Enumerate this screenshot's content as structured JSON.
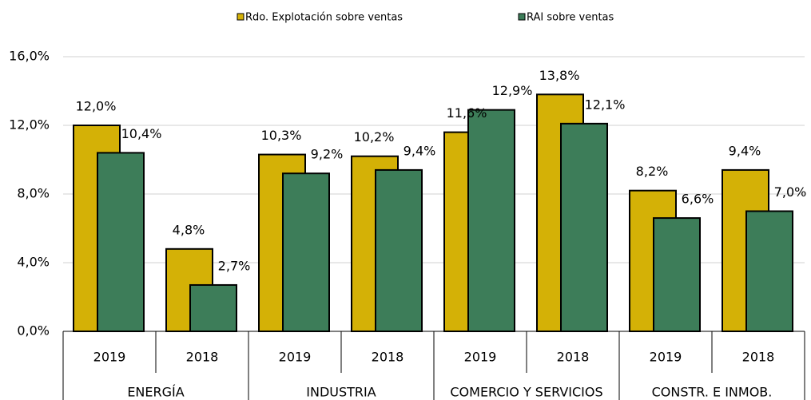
{
  "chart_data": {
    "type": "bar",
    "categories": [
      "2019",
      "2018",
      "2019",
      "2018",
      "2019",
      "2018",
      "2019",
      "2018"
    ],
    "groups": [
      "ENERGÍA",
      "INDUSTRIA",
      "COMERCIO Y SERVICIOS",
      "CONSTR. E INMOB."
    ],
    "series": [
      {
        "name": "Rdo. Explotación sobre ventas",
        "color": "#d4b106",
        "values": [
          12.0,
          4.8,
          10.3,
          10.2,
          11.6,
          13.8,
          8.2,
          9.4
        ],
        "value_labels": [
          "12,0%",
          "4,8%",
          "10,3%",
          "10,2%",
          "11,6%",
          "13,8%",
          "8,2%",
          "9,4%"
        ]
      },
      {
        "name": "RAI sobre ventas",
        "color": "#3d7d59",
        "values": [
          10.4,
          2.7,
          9.2,
          9.4,
          12.9,
          12.1,
          6.6,
          7.0
        ],
        "value_labels": [
          "10,4%",
          "2,7%",
          "9,2%",
          "9,4%",
          "12,9%",
          "12,1%",
          "6,6%",
          "7,0%"
        ]
      }
    ],
    "ylim": [
      0,
      16
    ],
    "yticks": [
      {
        "value": 0,
        "label": "0,0%"
      },
      {
        "value": 4,
        "label": "4,0%"
      },
      {
        "value": 8,
        "label": "8,0%"
      },
      {
        "value": 12,
        "label": "12,0%"
      },
      {
        "value": 16,
        "label": "16,0%"
      }
    ],
    "grid": true,
    "legend": "top"
  }
}
